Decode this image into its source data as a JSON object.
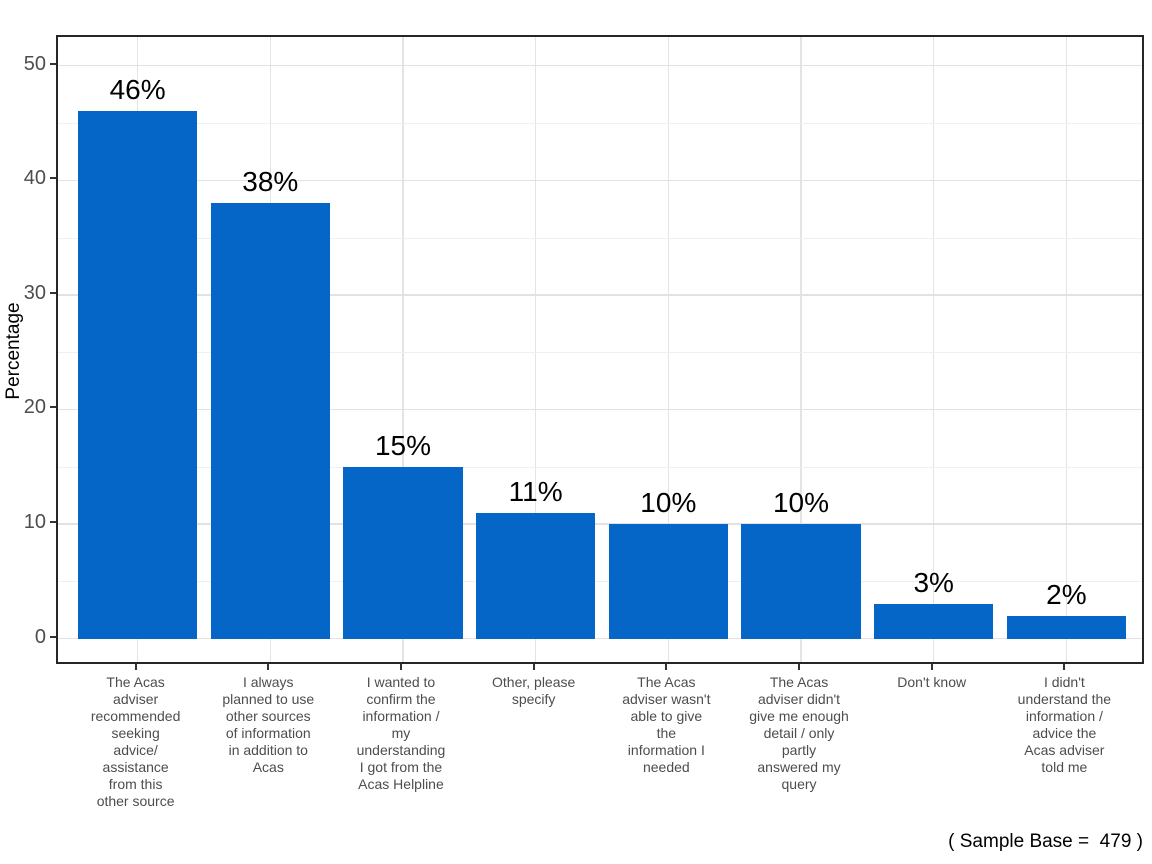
{
  "page": {
    "background": "#ffffff",
    "footnote": "( Sample Base =  479 )"
  },
  "chart_data": {
    "type": "bar",
    "title": "",
    "xlabel": "",
    "ylabel": "Percentage",
    "ylim": [
      0,
      50
    ],
    "yticks": [
      0,
      10,
      20,
      30,
      40,
      50
    ],
    "yticks_minor": [
      5,
      15,
      25,
      35,
      45
    ],
    "grid": "horizontal major+minor, vertical major at category centers",
    "legend_position": "none",
    "bar_color": "#0666c7",
    "axis_text_color": "#4d4d4d",
    "categories": [
      "The Acas adviser recommended seeking advice/ assistance from this other source",
      "I always planned to use other sources of information in addition to Acas",
      "I wanted to confirm the information / my understanding I got from the Acas Helpline",
      "Other, please specify",
      "The Acas adviser wasn't able to give the information I needed",
      "The Acas adviser didn't give me enough detail / only partly answered my query",
      "Don't know",
      "I didn't understand the information / advice the Acas adviser told me"
    ],
    "categories_wrapped": [
      [
        "The Acas",
        "adviser",
        "recommended",
        "seeking",
        "advice/",
        "assistance",
        "from this",
        "other source"
      ],
      [
        "I always",
        "planned to use",
        "other sources",
        "of information",
        "in addition to",
        "Acas"
      ],
      [
        "I wanted to",
        "confirm the",
        "information /",
        "my",
        "understanding",
        "I got from the",
        "Acas Helpline"
      ],
      [
        "Other, please",
        "specify"
      ],
      [
        "The Acas",
        "adviser wasn't",
        "able to give",
        "the",
        "information I",
        "needed"
      ],
      [
        "The Acas",
        "adviser didn't",
        "give me enough",
        "detail / only",
        "partly",
        "answered my",
        "query"
      ],
      [
        "Don't know"
      ],
      [
        "I didn't",
        "understand the",
        "information /",
        "advice the",
        "Acas adviser",
        "told me"
      ]
    ],
    "values": [
      46,
      38,
      15,
      11,
      10,
      10,
      3,
      2
    ],
    "value_labels": [
      "46%",
      "38%",
      "15%",
      "11%",
      "10%",
      "10%",
      "3%",
      "2%"
    ],
    "sample_base": 479
  }
}
